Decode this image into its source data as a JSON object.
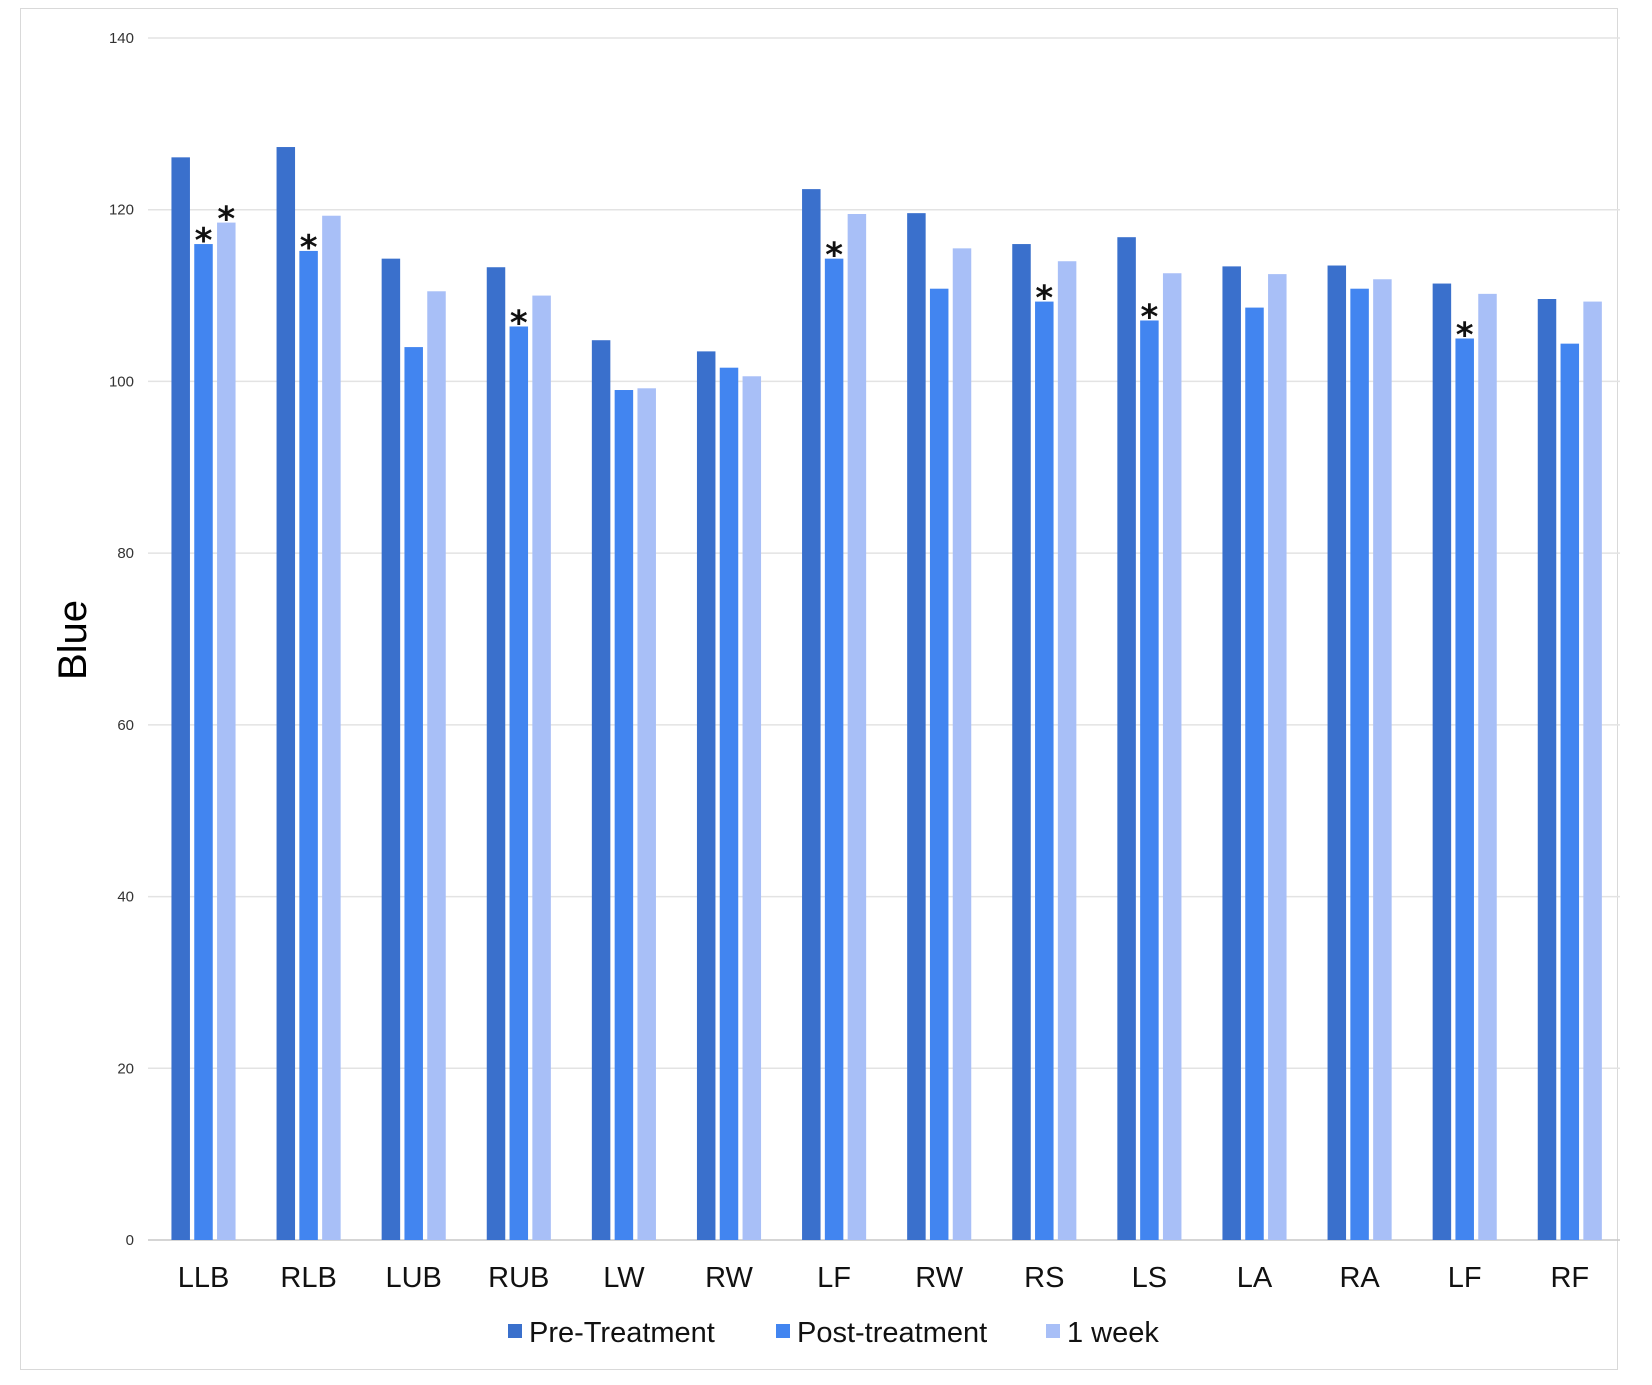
{
  "chart_data": {
    "type": "bar",
    "ylabel": "Blue",
    "xlabel": "",
    "ylim": [
      0,
      140
    ],
    "yticks": [
      0,
      20,
      40,
      60,
      80,
      100,
      120,
      140
    ],
    "grid": true,
    "legend_position": "bottom",
    "categories": [
      "LLB",
      "RLB",
      "LUB",
      "RUB",
      "LW",
      "RW",
      "LF",
      "RW",
      "RS",
      "LS",
      "LA",
      "RA",
      "LF",
      "RF"
    ],
    "series": [
      {
        "name": "Pre-Treatment",
        "color": "#3a70cc",
        "values": [
          126.1,
          127.3,
          114.3,
          113.3,
          104.8,
          103.5,
          122.4,
          119.6,
          116.0,
          116.8,
          113.4,
          113.5,
          111.4,
          109.6
        ]
      },
      {
        "name": "Post-treatment",
        "color": "#4285f0",
        "values": [
          116.0,
          115.2,
          104.0,
          106.4,
          99.0,
          101.6,
          114.3,
          110.8,
          109.3,
          107.1,
          108.6,
          110.8,
          105.0,
          104.4
        ]
      },
      {
        "name": "1 week",
        "color": "#a8bff7",
        "values": [
          118.5,
          119.3,
          110.5,
          110.0,
          99.2,
          100.6,
          119.5,
          115.5,
          114.0,
          112.6,
          112.5,
          111.9,
          110.2,
          109.3
        ]
      }
    ],
    "annotations": [
      {
        "text": "*",
        "category_index": 0,
        "series_index": 1
      },
      {
        "text": "*",
        "category_index": 0,
        "series_index": 2
      },
      {
        "text": "*",
        "category_index": 1,
        "series_index": 1
      },
      {
        "text": "*",
        "category_index": 3,
        "series_index": 1
      },
      {
        "text": "*",
        "category_index": 6,
        "series_index": 1
      },
      {
        "text": "*",
        "category_index": 8,
        "series_index": 1
      },
      {
        "text": "*",
        "category_index": 9,
        "series_index": 1
      },
      {
        "text": "*",
        "category_index": 12,
        "series_index": 1
      }
    ]
  }
}
